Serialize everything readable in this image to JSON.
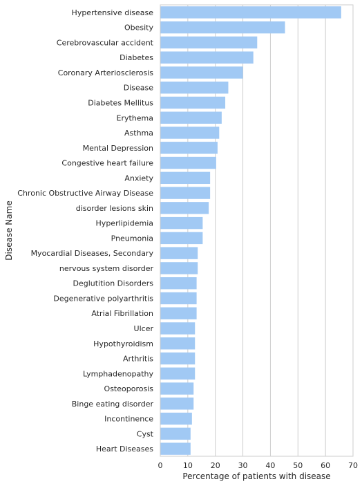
{
  "chart_data": {
    "type": "bar",
    "orientation": "horizontal",
    "title": "",
    "xlabel": "Percentage of patients with disease",
    "ylabel": "Disease Name",
    "xlim": [
      0,
      70
    ],
    "xticks": [
      0,
      10,
      20,
      30,
      40,
      50,
      60,
      70
    ],
    "grid": "vertical",
    "bar_color": "#a1c9f4",
    "categories": [
      "Hypertensive disease",
      "Obesity",
      "Cerebrovascular accident",
      "Diabetes",
      "Coronary Arteriosclerosis",
      "Disease",
      "Diabetes Mellitus",
      "Erythema",
      "Asthma",
      "Mental Depression",
      "Congestive heart failure",
      "Anxiety",
      "Chronic Obstructive Airway Disease",
      "disorder lesions skin",
      "Hyperlipidemia",
      "Pneumonia",
      "Myocardial Diseases, Secondary",
      "nervous system disorder",
      "Deglutition Disorders",
      "Degenerative polyarthritis",
      "Atrial Fibrillation",
      "Ulcer",
      "Hypothyroidism",
      "Arthritis",
      "Lymphadenopathy",
      "Osteoporosis",
      "Binge eating disorder",
      "Incontinence",
      "Cyst",
      "Heart Diseases"
    ],
    "values": [
      65.7,
      45.3,
      35.2,
      33.8,
      30.0,
      24.7,
      23.6,
      22.3,
      21.4,
      20.8,
      20.3,
      18.1,
      18.1,
      17.6,
      15.4,
      15.4,
      13.6,
      13.6,
      13.2,
      13.2,
      13.2,
      12.6,
      12.6,
      12.6,
      12.6,
      12.1,
      12.1,
      11.5,
      11.0,
      11.0
    ]
  }
}
